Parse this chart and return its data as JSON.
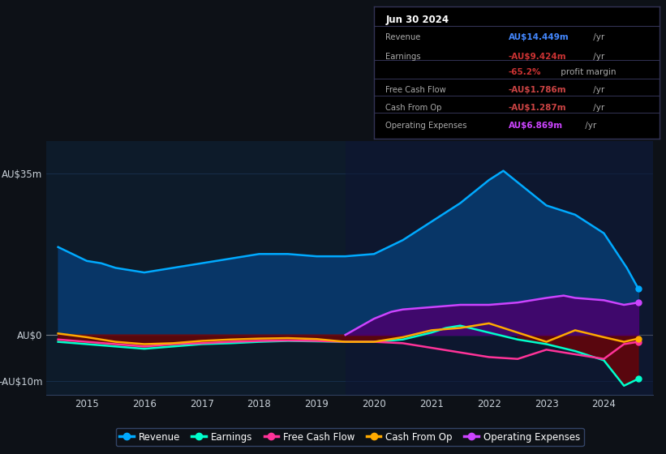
{
  "bg_color": "#0d1117",
  "plot_bg": "#0d1b2a",
  "grid_color": "#1e3a5f",
  "label_color": "#c8d0d8",
  "ylim": [
    -13,
    42
  ],
  "ytick_vals": [
    -10,
    0,
    35
  ],
  "ytick_labels": [
    "-AU$10m",
    "AU$0",
    "AU$35m"
  ],
  "xlim": [
    2014.3,
    2024.85
  ],
  "xtick_years": [
    2015,
    2016,
    2017,
    2018,
    2019,
    2020,
    2021,
    2022,
    2023,
    2024
  ],
  "revenue_x": [
    2014.5,
    2014.75,
    2015.0,
    2015.25,
    2015.5,
    2016.0,
    2016.5,
    2017.0,
    2017.5,
    2018.0,
    2018.5,
    2019.0,
    2019.5,
    2020.0,
    2020.5,
    2021.0,
    2021.5,
    2022.0,
    2022.25,
    2022.5,
    2023.0,
    2023.5,
    2024.0,
    2024.4,
    2024.6
  ],
  "revenue_y": [
    19.0,
    17.5,
    16.0,
    15.5,
    14.5,
    13.5,
    14.5,
    15.5,
    16.5,
    17.5,
    17.5,
    17.0,
    17.0,
    17.5,
    20.5,
    24.5,
    28.5,
    33.5,
    35.5,
    33.0,
    28.0,
    26.0,
    22.0,
    14.5,
    10.0
  ],
  "earnings_x": [
    2014.5,
    2015.0,
    2015.5,
    2016.0,
    2016.5,
    2017.0,
    2017.5,
    2018.0,
    2018.5,
    2019.0,
    2019.5,
    2020.0,
    2020.5,
    2021.0,
    2021.25,
    2021.5,
    2022.0,
    2022.5,
    2023.0,
    2023.5,
    2024.0,
    2024.35,
    2024.6
  ],
  "earnings_y": [
    -1.5,
    -2.0,
    -2.5,
    -3.0,
    -2.5,
    -2.0,
    -1.8,
    -1.5,
    -1.3,
    -1.4,
    -1.5,
    -1.5,
    -1.0,
    0.5,
    1.5,
    2.0,
    0.5,
    -1.0,
    -2.0,
    -3.5,
    -5.5,
    -11.0,
    -9.5
  ],
  "fcf_x": [
    2014.5,
    2015.0,
    2015.5,
    2016.0,
    2016.5,
    2017.0,
    2017.5,
    2018.0,
    2018.5,
    2019.0,
    2019.5,
    2020.0,
    2020.5,
    2021.0,
    2021.5,
    2022.0,
    2022.5,
    2023.0,
    2023.5,
    2024.0,
    2024.35,
    2024.6
  ],
  "fcf_y": [
    -1.0,
    -1.5,
    -2.0,
    -2.5,
    -2.0,
    -1.8,
    -1.5,
    -1.3,
    -1.2,
    -1.3,
    -1.5,
    -1.5,
    -1.8,
    -2.8,
    -3.8,
    -4.8,
    -5.2,
    -3.2,
    -4.2,
    -5.2,
    -2.0,
    -1.5
  ],
  "cashop_x": [
    2014.5,
    2015.0,
    2015.5,
    2016.0,
    2016.5,
    2017.0,
    2017.5,
    2018.0,
    2018.5,
    2019.0,
    2019.5,
    2020.0,
    2020.5,
    2021.0,
    2021.5,
    2022.0,
    2022.5,
    2023.0,
    2023.5,
    2024.0,
    2024.35,
    2024.6
  ],
  "cashop_y": [
    0.3,
    -0.5,
    -1.5,
    -2.0,
    -1.8,
    -1.3,
    -1.0,
    -0.8,
    -0.7,
    -0.9,
    -1.5,
    -1.5,
    -0.5,
    1.0,
    1.5,
    2.5,
    0.5,
    -1.5,
    1.0,
    -0.5,
    -1.5,
    -0.8
  ],
  "opex_x": [
    2019.5,
    2020.0,
    2020.3,
    2020.5,
    2021.0,
    2021.5,
    2022.0,
    2022.5,
    2023.0,
    2023.3,
    2023.5,
    2024.0,
    2024.35,
    2024.6
  ],
  "opex_y": [
    0.0,
    3.5,
    5.0,
    5.5,
    6.0,
    6.5,
    6.5,
    7.0,
    8.0,
    8.5,
    8.0,
    7.5,
    6.5,
    7.0
  ],
  "rev_color": "#00aaff",
  "rev_fill": "#083a6e",
  "earn_color": "#00ffcc",
  "earn_neg_fill": "#7a0000",
  "fcf_color": "#ff3399",
  "cashop_color": "#ffaa00",
  "opex_color": "#cc44ff",
  "opex_fill": "#4a006e",
  "info_title": "Jun 30 2024",
  "info_rows": [
    {
      "label": "Revenue",
      "value": "AU$14.449m",
      "suffix": " /yr",
      "val_color": "#4488ff",
      "has_sep": true
    },
    {
      "label": "Earnings",
      "value": "-AU$9.424m",
      "suffix": " /yr",
      "val_color": "#cc3333",
      "has_sep": false
    },
    {
      "label": "",
      "value": "-65.2%",
      "suffix": " profit margin",
      "val_color": "#cc3333",
      "has_sep": true
    },
    {
      "label": "Free Cash Flow",
      "value": "-AU$1.786m",
      "suffix": " /yr",
      "val_color": "#cc4444",
      "has_sep": true
    },
    {
      "label": "Cash From Op",
      "value": "-AU$1.287m",
      "suffix": " /yr",
      "val_color": "#cc4444",
      "has_sep": true
    },
    {
      "label": "Operating Expenses",
      "value": "AU$6.869m",
      "suffix": " /yr",
      "val_color": "#cc44ff",
      "has_sep": false
    }
  ],
  "legend_items": [
    {
      "label": "Revenue",
      "color": "#00aaff"
    },
    {
      "label": "Earnings",
      "color": "#00ffcc"
    },
    {
      "label": "Free Cash Flow",
      "color": "#ff3399"
    },
    {
      "label": "Cash From Op",
      "color": "#ffaa00"
    },
    {
      "label": "Operating Expenses",
      "color": "#cc44ff"
    }
  ]
}
